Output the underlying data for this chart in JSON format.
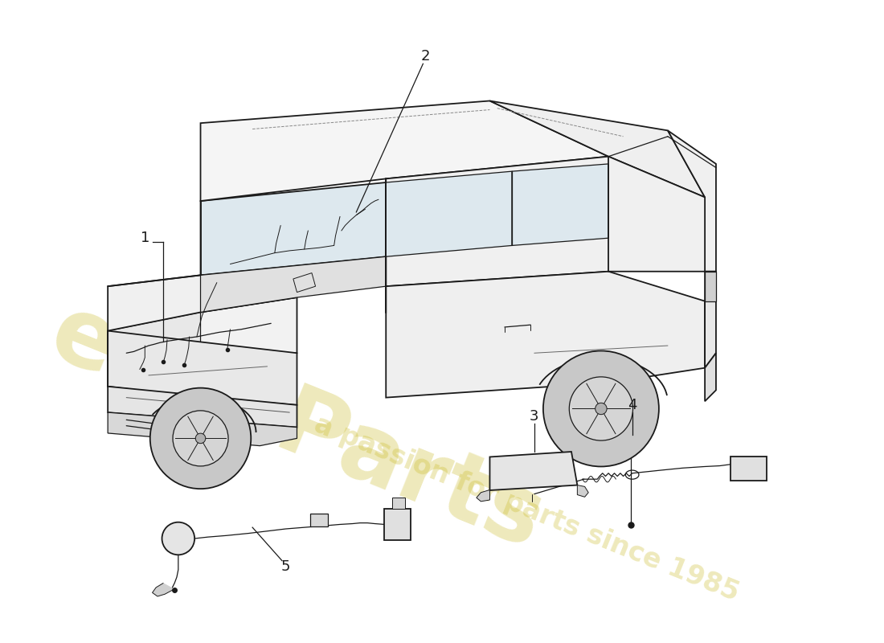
{
  "background_color": "#ffffff",
  "line_color": "#1a1a1a",
  "watermark_color1": "#c8b820",
  "watermark_color2": "#c8b820",
  "watermark_alpha": 0.3,
  "fig_width": 11.0,
  "fig_height": 8.0,
  "dpi": 100,
  "label_fontsize": 13,
  "watermark_fontsize1": 85,
  "watermark_fontsize2": 24,
  "watermark_rot": -22
}
